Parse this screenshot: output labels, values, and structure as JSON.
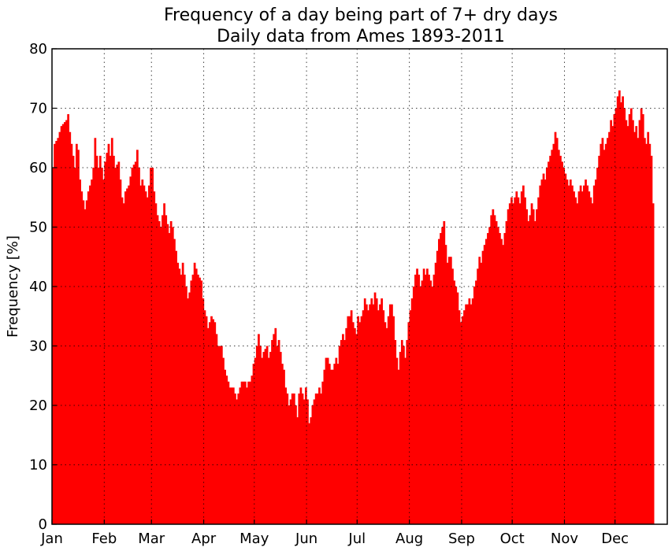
{
  "chart_data": {
    "type": "bar",
    "title": "Frequency of a day being part of 7+ dry days",
    "subtitle": "Daily data from Ames 1893-2011",
    "xlabel": "",
    "ylabel": "Frequency [%]",
    "ylim": [
      0,
      80
    ],
    "xlim": [
      1,
      366
    ],
    "yticks": [
      0,
      10,
      20,
      30,
      40,
      50,
      60,
      70,
      80
    ],
    "month_ticks": [
      {
        "label": "Jan",
        "day": 1
      },
      {
        "label": "Feb",
        "day": 32
      },
      {
        "label": "Mar",
        "day": 60
      },
      {
        "label": "Apr",
        "day": 91
      },
      {
        "label": "May",
        "day": 121
      },
      {
        "label": "Jun",
        "day": 152
      },
      {
        "label": "Jul",
        "day": 182
      },
      {
        "label": "Aug",
        "day": 213
      },
      {
        "label": "Sep",
        "day": 244
      },
      {
        "label": "Oct",
        "day": 274
      },
      {
        "label": "Nov",
        "day": 305
      },
      {
        "label": "Dec",
        "day": 335
      }
    ],
    "grid": true,
    "color": "#ff0000",
    "x_unit": "day of year",
    "anchors": [
      [
        1,
        60
      ],
      [
        2,
        64
      ],
      [
        4,
        65
      ],
      [
        6,
        67
      ],
      [
        9,
        68
      ],
      [
        10,
        69
      ],
      [
        11,
        66
      ],
      [
        13,
        62
      ],
      [
        14,
        60
      ],
      [
        15,
        64
      ],
      [
        16,
        63
      ],
      [
        17,
        58
      ],
      [
        18,
        56
      ],
      [
        20,
        53
      ],
      [
        22,
        56
      ],
      [
        24,
        58
      ],
      [
        25,
        60
      ],
      [
        26,
        65
      ],
      [
        27,
        62
      ],
      [
        28,
        60
      ],
      [
        29,
        62
      ],
      [
        30,
        60
      ],
      [
        31,
        58
      ],
      [
        32,
        61
      ],
      [
        34,
        64
      ],
      [
        35,
        62
      ],
      [
        36,
        65
      ],
      [
        37,
        62
      ],
      [
        38,
        60
      ],
      [
        40,
        61
      ],
      [
        41,
        58
      ],
      [
        42,
        55
      ],
      [
        43,
        54
      ],
      [
        44,
        56
      ],
      [
        46,
        57
      ],
      [
        48,
        60
      ],
      [
        50,
        61
      ],
      [
        51,
        63
      ],
      [
        52,
        60
      ],
      [
        53,
        57
      ],
      [
        54,
        58
      ],
      [
        56,
        56
      ],
      [
        57,
        55
      ],
      [
        58,
        57
      ],
      [
        59,
        60
      ],
      [
        60,
        60
      ],
      [
        61,
        56
      ],
      [
        62,
        54
      ],
      [
        63,
        52
      ],
      [
        65,
        50
      ],
      [
        67,
        54
      ],
      [
        68,
        52
      ],
      [
        70,
        49
      ],
      [
        71,
        51
      ],
      [
        72,
        50
      ],
      [
        73,
        48
      ],
      [
        74,
        46
      ],
      [
        75,
        44
      ],
      [
        77,
        42
      ],
      [
        78,
        44
      ],
      [
        79,
        42
      ],
      [
        80,
        40
      ],
      [
        81,
        38
      ],
      [
        82,
        39
      ],
      [
        83,
        41
      ],
      [
        84,
        42
      ],
      [
        85,
        44
      ],
      [
        86,
        43
      ],
      [
        87,
        42
      ],
      [
        89,
        41
      ],
      [
        90,
        38
      ],
      [
        91,
        36
      ],
      [
        92,
        35
      ],
      [
        93,
        33
      ],
      [
        94,
        34
      ],
      [
        95,
        35
      ],
      [
        97,
        34
      ],
      [
        98,
        32
      ],
      [
        99,
        30
      ],
      [
        101,
        30
      ],
      [
        102,
        28
      ],
      [
        103,
        26
      ],
      [
        104,
        25
      ],
      [
        105,
        24
      ],
      [
        106,
        23
      ],
      [
        108,
        23
      ],
      [
        109,
        22
      ],
      [
        110,
        21
      ],
      [
        112,
        23
      ],
      [
        113,
        24
      ],
      [
        115,
        24
      ],
      [
        116,
        23
      ],
      [
        117,
        24
      ],
      [
        118,
        24
      ],
      [
        119,
        25
      ],
      [
        120,
        27
      ],
      [
        121,
        28
      ],
      [
        122,
        30
      ],
      [
        123,
        32
      ],
      [
        124,
        30
      ],
      [
        125,
        28
      ],
      [
        126,
        29
      ],
      [
        128,
        30
      ],
      [
        129,
        28
      ],
      [
        130,
        29
      ],
      [
        131,
        31
      ],
      [
        132,
        32
      ],
      [
        133,
        33
      ],
      [
        134,
        30
      ],
      [
        135,
        31
      ],
      [
        136,
        29
      ],
      [
        137,
        27
      ],
      [
        138,
        26
      ],
      [
        139,
        23
      ],
      [
        140,
        22
      ],
      [
        141,
        20
      ],
      [
        142,
        21
      ],
      [
        143,
        22
      ],
      [
        144,
        22
      ],
      [
        145,
        20
      ],
      [
        146,
        18
      ],
      [
        147,
        22
      ],
      [
        148,
        23
      ],
      [
        149,
        22
      ],
      [
        150,
        21
      ],
      [
        151,
        23
      ],
      [
        152,
        21
      ],
      [
        153,
        17
      ],
      [
        154,
        18
      ],
      [
        155,
        20
      ],
      [
        156,
        21
      ],
      [
        157,
        22
      ],
      [
        158,
        22
      ],
      [
        159,
        23
      ],
      [
        160,
        22
      ],
      [
        161,
        24
      ],
      [
        162,
        26
      ],
      [
        163,
        28
      ],
      [
        164,
        28
      ],
      [
        165,
        27
      ],
      [
        166,
        26
      ],
      [
        167,
        26
      ],
      [
        168,
        27
      ],
      [
        169,
        28
      ],
      [
        170,
        27
      ],
      [
        171,
        30
      ],
      [
        172,
        31
      ],
      [
        173,
        32
      ],
      [
        174,
        31
      ],
      [
        175,
        33
      ],
      [
        176,
        35
      ],
      [
        177,
        35
      ],
      [
        178,
        36
      ],
      [
        179,
        34
      ],
      [
        180,
        33
      ],
      [
        181,
        32
      ],
      [
        182,
        35
      ],
      [
        183,
        34
      ],
      [
        184,
        35
      ],
      [
        185,
        36
      ],
      [
        186,
        38
      ],
      [
        187,
        37
      ],
      [
        188,
        36
      ],
      [
        189,
        37
      ],
      [
        190,
        38
      ],
      [
        191,
        37
      ],
      [
        192,
        39
      ],
      [
        193,
        38
      ],
      [
        194,
        36
      ],
      [
        195,
        37
      ],
      [
        196,
        38
      ],
      [
        197,
        36
      ],
      [
        198,
        34
      ],
      [
        199,
        33
      ],
      [
        200,
        35
      ],
      [
        201,
        37
      ],
      [
        202,
        37
      ],
      [
        203,
        35
      ],
      [
        204,
        31
      ],
      [
        205,
        28
      ],
      [
        206,
        26
      ],
      [
        207,
        29
      ],
      [
        208,
        31
      ],
      [
        209,
        30
      ],
      [
        210,
        28
      ],
      [
        211,
        31
      ],
      [
        212,
        34
      ],
      [
        213,
        36
      ],
      [
        214,
        38
      ],
      [
        215,
        40
      ],
      [
        216,
        42
      ],
      [
        217,
        43
      ],
      [
        218,
        42
      ],
      [
        219,
        40
      ],
      [
        220,
        41
      ],
      [
        221,
        43
      ],
      [
        222,
        42
      ],
      [
        223,
        43
      ],
      [
        224,
        42
      ],
      [
        225,
        41
      ],
      [
        226,
        40
      ],
      [
        227,
        42
      ],
      [
        228,
        44
      ],
      [
        229,
        46
      ],
      [
        230,
        48
      ],
      [
        231,
        49
      ],
      [
        232,
        50
      ],
      [
        233,
        51
      ],
      [
        234,
        47
      ],
      [
        235,
        44
      ],
      [
        236,
        45
      ],
      [
        237,
        45
      ],
      [
        238,
        43
      ],
      [
        239,
        41
      ],
      [
        240,
        40
      ],
      [
        241,
        39
      ],
      [
        242,
        36
      ],
      [
        243,
        34
      ],
      [
        244,
        35
      ],
      [
        245,
        36
      ],
      [
        246,
        37
      ],
      [
        247,
        37
      ],
      [
        248,
        38
      ],
      [
        249,
        37
      ],
      [
        250,
        38
      ],
      [
        251,
        40
      ],
      [
        252,
        41
      ],
      [
        253,
        43
      ],
      [
        254,
        45
      ],
      [
        255,
        44
      ],
      [
        256,
        46
      ],
      [
        257,
        47
      ],
      [
        258,
        48
      ],
      [
        259,
        49
      ],
      [
        260,
        50
      ],
      [
        261,
        52
      ],
      [
        262,
        53
      ],
      [
        263,
        52
      ],
      [
        264,
        51
      ],
      [
        265,
        50
      ],
      [
        266,
        49
      ],
      [
        267,
        48
      ],
      [
        268,
        47
      ],
      [
        269,
        49
      ],
      [
        270,
        51
      ],
      [
        271,
        53
      ],
      [
        272,
        54
      ],
      [
        273,
        55
      ],
      [
        274,
        54
      ],
      [
        275,
        55
      ],
      [
        276,
        56
      ],
      [
        277,
        55
      ],
      [
        278,
        54
      ],
      [
        279,
        56
      ],
      [
        280,
        57
      ],
      [
        281,
        55
      ],
      [
        282,
        53
      ],
      [
        283,
        51
      ],
      [
        284,
        52
      ],
      [
        285,
        54
      ],
      [
        286,
        53
      ],
      [
        287,
        51
      ],
      [
        288,
        53
      ],
      [
        289,
        55
      ],
      [
        290,
        57
      ],
      [
        291,
        58
      ],
      [
        292,
        59
      ],
      [
        293,
        58
      ],
      [
        294,
        60
      ],
      [
        295,
        61
      ],
      [
        296,
        62
      ],
      [
        297,
        63
      ],
      [
        298,
        64
      ],
      [
        299,
        66
      ],
      [
        300,
        65
      ],
      [
        301,
        63
      ],
      [
        302,
        62
      ],
      [
        303,
        61
      ],
      [
        304,
        60
      ],
      [
        305,
        59
      ],
      [
        306,
        58
      ],
      [
        307,
        57
      ],
      [
        308,
        58
      ],
      [
        309,
        57
      ],
      [
        310,
        56
      ],
      [
        311,
        55
      ],
      [
        312,
        54
      ],
      [
        313,
        56
      ],
      [
        314,
        57
      ],
      [
        315,
        56
      ],
      [
        316,
        57
      ],
      [
        317,
        58
      ],
      [
        318,
        57
      ],
      [
        319,
        56
      ],
      [
        320,
        55
      ],
      [
        321,
        54
      ],
      [
        322,
        57
      ],
      [
        323,
        58
      ],
      [
        324,
        60
      ],
      [
        325,
        62
      ],
      [
        326,
        64
      ],
      [
        327,
        65
      ],
      [
        328,
        63
      ],
      [
        329,
        64
      ],
      [
        330,
        65
      ],
      [
        331,
        66
      ],
      [
        332,
        68
      ],
      [
        333,
        67
      ],
      [
        334,
        69
      ],
      [
        335,
        70
      ],
      [
        336,
        72
      ],
      [
        337,
        73
      ],
      [
        338,
        71
      ],
      [
        339,
        72
      ],
      [
        340,
        70
      ],
      [
        341,
        68
      ],
      [
        342,
        67
      ],
      [
        343,
        69
      ],
      [
        344,
        70
      ],
      [
        345,
        68
      ],
      [
        346,
        66
      ],
      [
        347,
        67
      ],
      [
        348,
        65
      ],
      [
        349,
        68
      ],
      [
        350,
        70
      ],
      [
        351,
        69
      ],
      [
        352,
        65
      ],
      [
        353,
        64
      ],
      [
        354,
        66
      ],
      [
        355,
        64
      ],
      [
        356,
        62
      ],
      [
        357,
        54
      ]
    ]
  }
}
